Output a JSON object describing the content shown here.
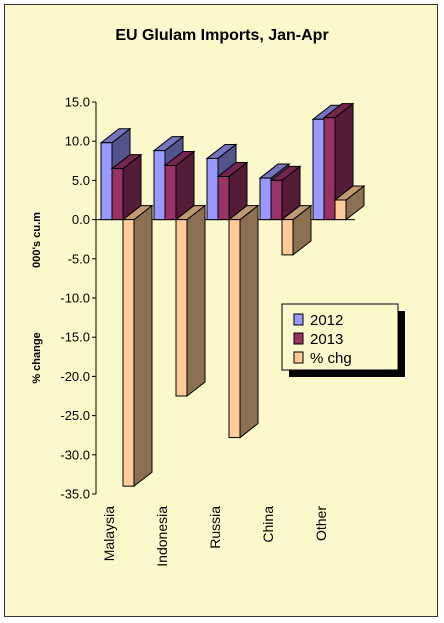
{
  "chart_data": {
    "type": "bar",
    "title": "EU Glulam Imports, Jan-Apr",
    "ylabel_top": "000's cu.m",
    "ylabel_bottom": "% change",
    "categories": [
      "Malaysia",
      "Indonesia",
      "Russia",
      "China",
      "Other"
    ],
    "series": [
      {
        "name": "2012",
        "values": [
          9.8,
          8.8,
          7.8,
          5.3,
          12.8
        ],
        "color": "#9999ff"
      },
      {
        "name": "2013",
        "values": [
          6.5,
          6.9,
          5.5,
          5.0,
          13.0
        ],
        "color": "#993366"
      },
      {
        "name": "% chg",
        "values": [
          -34.0,
          -22.5,
          -27.8,
          -4.5,
          2.5
        ],
        "color": "#ffcc99"
      }
    ],
    "ylim": [
      -35,
      15
    ],
    "yticks": [
      "15.0",
      "10.0",
      "5.0",
      "0.0",
      "-5.0",
      "-10.0",
      "-15.0",
      "-20.0",
      "-25.0",
      "-30.0",
      "-35.0"
    ],
    "legend_position": "right",
    "bar_style": "3d"
  }
}
